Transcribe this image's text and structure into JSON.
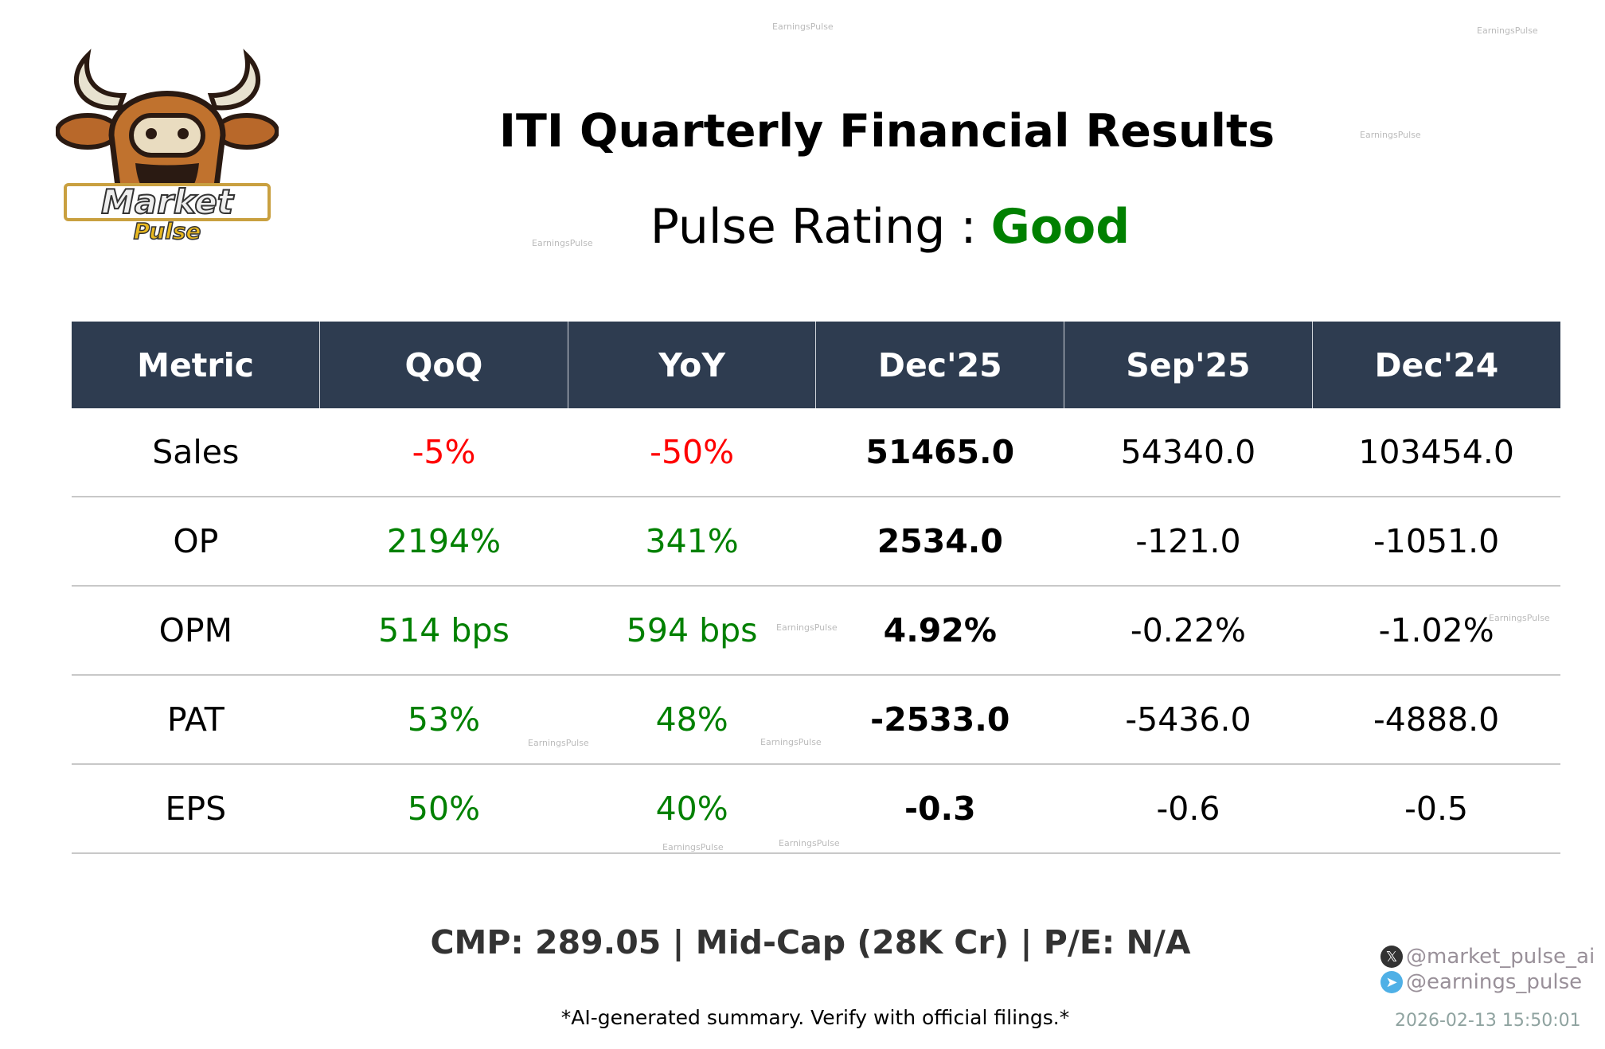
{
  "header": {
    "title": "ITI Quarterly Financial Results",
    "rating_label": "Pulse Rating :",
    "rating_value": "Good",
    "rating_color": "#008000"
  },
  "logo": {
    "text1": "Market",
    "text2": "Pulse"
  },
  "table": {
    "columns": [
      "Metric",
      "QoQ",
      "YoY",
      "Dec'25",
      "Sep'25",
      "Dec'24"
    ],
    "rows": [
      {
        "metric": "Sales",
        "qoq": "-5%",
        "yoy": "-50%",
        "c1": "51465.0",
        "c2": "54340.0",
        "c3": "103454.0"
      },
      {
        "metric": "OP",
        "qoq": "2194%",
        "yoy": "341%",
        "c1": "2534.0",
        "c2": "-121.0",
        "c3": "-1051.0"
      },
      {
        "metric": "OPM",
        "qoq": "514 bps",
        "yoy": "594 bps",
        "c1": "4.92%",
        "c2": "-0.22%",
        "c3": "-1.02%"
      },
      {
        "metric": "PAT",
        "qoq": "53%",
        "yoy": "48%",
        "c1": "-2533.0",
        "c2": "-5436.0",
        "c3": "-4888.0"
      },
      {
        "metric": "EPS",
        "qoq": "50%",
        "yoy": "40%",
        "c1": "-0.3",
        "c2": "-0.6",
        "c3": "-0.5"
      }
    ],
    "header_color": "#2e3c50",
    "positive_color": "#008000",
    "negative_color": "#ff0000"
  },
  "footer": {
    "cmp": "CMP: 289.05 | Mid-Cap (28K Cr) | P/E: N/A",
    "disclaimer": "*AI-generated summary. Verify with official filings.*",
    "twitter": "@market_pulse_ai",
    "telegram": "@earnings_pulse",
    "timestamp": "2026-02-13 15:50:01"
  },
  "watermark": "EarningsPulse"
}
